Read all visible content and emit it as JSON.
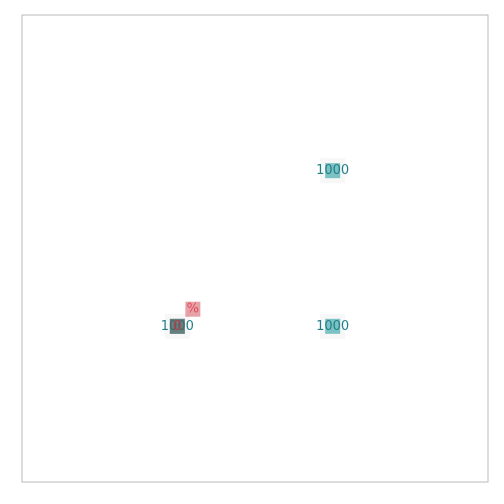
{
  "chart_data": {
    "type": "scatter",
    "grid": false,
    "x_range": [
      0,
      3
    ],
    "y_range": [
      0,
      3
    ],
    "series": [
      {
        "color": "#3aa6a6",
        "points": [
          {
            "x": 2,
            "y": 2,
            "label": "1000"
          },
          {
            "x": 1,
            "y": 1,
            "label": "1000"
          },
          {
            "x": 2,
            "y": 1,
            "label": "1000"
          }
        ]
      },
      {
        "color": "#d97078",
        "points": [
          {
            "x": 1.1,
            "y": 1.11,
            "label": "%"
          }
        ]
      },
      {
        "color": "#595959",
        "points": [
          {
            "x": 1,
            "y": 1,
            "label": "0"
          }
        ]
      }
    ]
  }
}
